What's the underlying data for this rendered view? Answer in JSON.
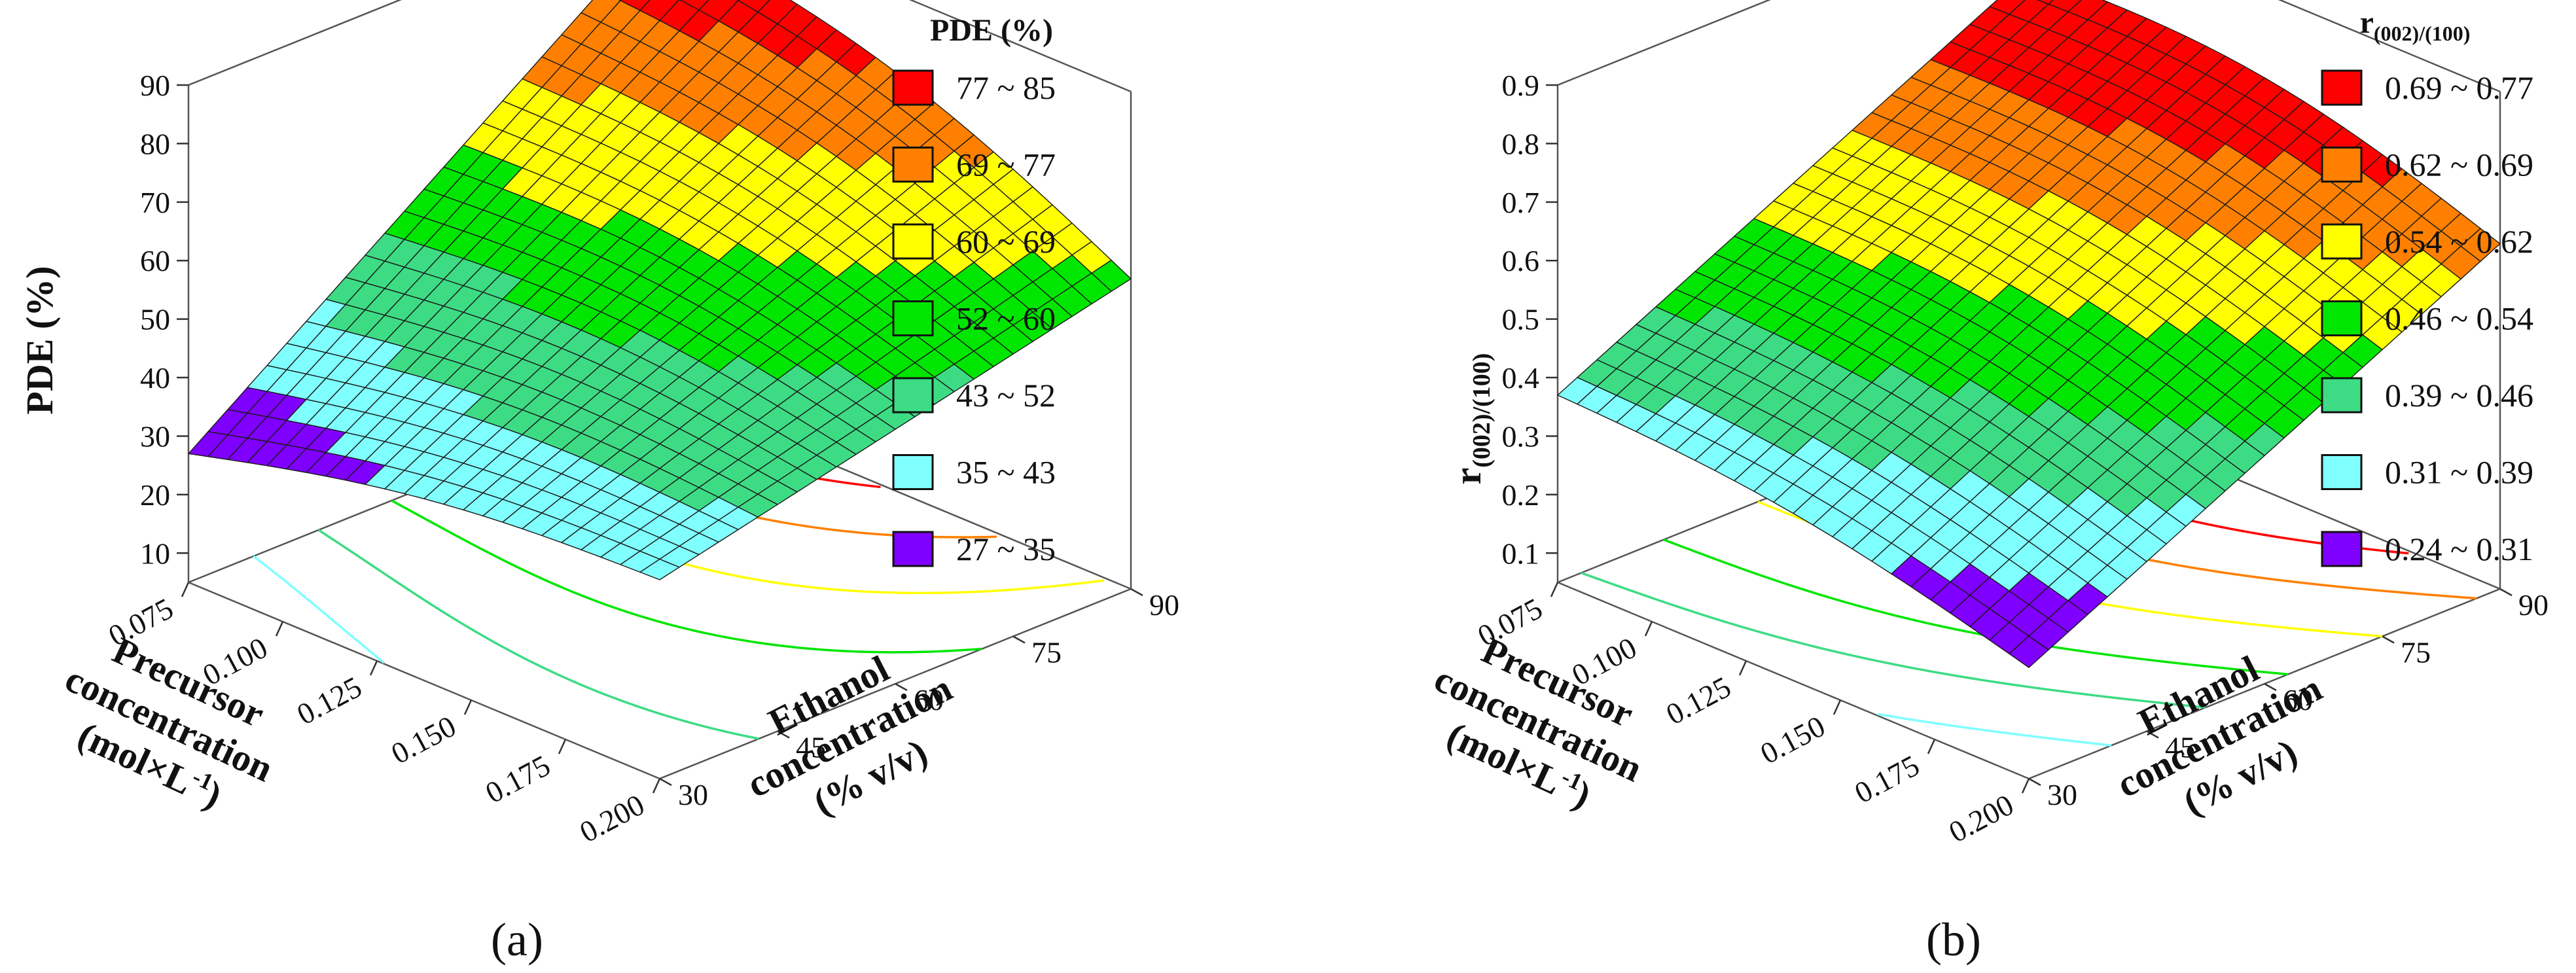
{
  "chart_data": [
    {
      "type": "surface3d",
      "panel_label": "(a)",
      "z_axis_label": "PDE (%)",
      "z_ticks": [
        "10",
        "20",
        "30",
        "40",
        "50",
        "60",
        "70",
        "80",
        "90"
      ],
      "z_range": [
        5,
        90
      ],
      "x_axis_label": [
        "Precursor",
        "concentration",
        "(mol×L",
        "-1",
        ")"
      ],
      "x_ticks": [
        "0.075",
        "0.100",
        "0.125",
        "0.150",
        "0.175",
        "0.200"
      ],
      "x_range": [
        0.075,
        0.2
      ],
      "y_axis_label": [
        "Ethanol",
        "concentration",
        "(% v/v)"
      ],
      "y_ticks": [
        "30",
        "45",
        "60",
        "75",
        "90"
      ],
      "y_range": [
        30,
        90
      ],
      "legend_title": "PDE (%)",
      "legend": [
        {
          "label": "77 ~ 85",
          "color": "#ff0000"
        },
        {
          "label": "69 ~ 77",
          "color": "#ff8000"
        },
        {
          "label": "60 ~ 69",
          "color": "#ffff00"
        },
        {
          "label": "52 ~ 60",
          "color": "#00e600"
        },
        {
          "label": "43 ~ 52",
          "color": "#3ddc84"
        },
        {
          "label": "35 ~ 43",
          "color": "#80ffff"
        },
        {
          "label": "27 ~ 35",
          "color": "#8000ff"
        }
      ],
      "surface_corners": {
        "precursor_0.075_ethanol_30": 27,
        "precursor_0.075_ethanol_90": 85,
        "precursor_0.200_ethanol_30": 39,
        "precursor_0.200_ethanol_90": 58
      }
    },
    {
      "type": "surface3d",
      "panel_label": "(b)",
      "z_axis_label": "r(002)/(100)",
      "z_axis_label_main": "r",
      "z_axis_label_sub": "(002)/(100)",
      "z_ticks": [
        "0.1",
        "0.2",
        "0.3",
        "0.4",
        "0.5",
        "0.6",
        "0.7",
        "0.8",
        "0.9"
      ],
      "z_range": [
        0.05,
        0.9
      ],
      "x_axis_label": [
        "Precursor",
        "concentration",
        "(mol×L",
        "-1",
        ")"
      ],
      "x_ticks": [
        "0.075",
        "0.100",
        "0.125",
        "0.150",
        "0.175",
        "0.200"
      ],
      "x_range": [
        0.075,
        0.2
      ],
      "y_axis_label": [
        "Ethanol",
        "concentration",
        "(% v/v)"
      ],
      "y_ticks": [
        "30",
        "45",
        "60",
        "75",
        "90"
      ],
      "y_range": [
        30,
        90
      ],
      "legend_title": "r(002)/(100)",
      "legend_title_main": "r",
      "legend_title_sub": "(002)/(100)",
      "legend": [
        {
          "label": "0.69 ~ 0.77",
          "color": "#ff0000"
        },
        {
          "label": "0.62 ~ 0.69",
          "color": "#ff8000"
        },
        {
          "label": "0.54 ~ 0.62",
          "color": "#ffff00"
        },
        {
          "label": "0.46 ~ 0.54",
          "color": "#00e600"
        },
        {
          "label": "0.39 ~ 0.46",
          "color": "#3ddc84"
        },
        {
          "label": "0.31 ~ 0.39",
          "color": "#80ffff"
        },
        {
          "label": "0.24 ~ 0.31",
          "color": "#8000ff"
        }
      ],
      "surface_corners": {
        "precursor_0.075_ethanol_30": 0.37,
        "precursor_0.075_ethanol_90": 0.77,
        "precursor_0.200_ethanol_30": 0.24,
        "precursor_0.200_ethanol_90": 0.64
      }
    }
  ]
}
